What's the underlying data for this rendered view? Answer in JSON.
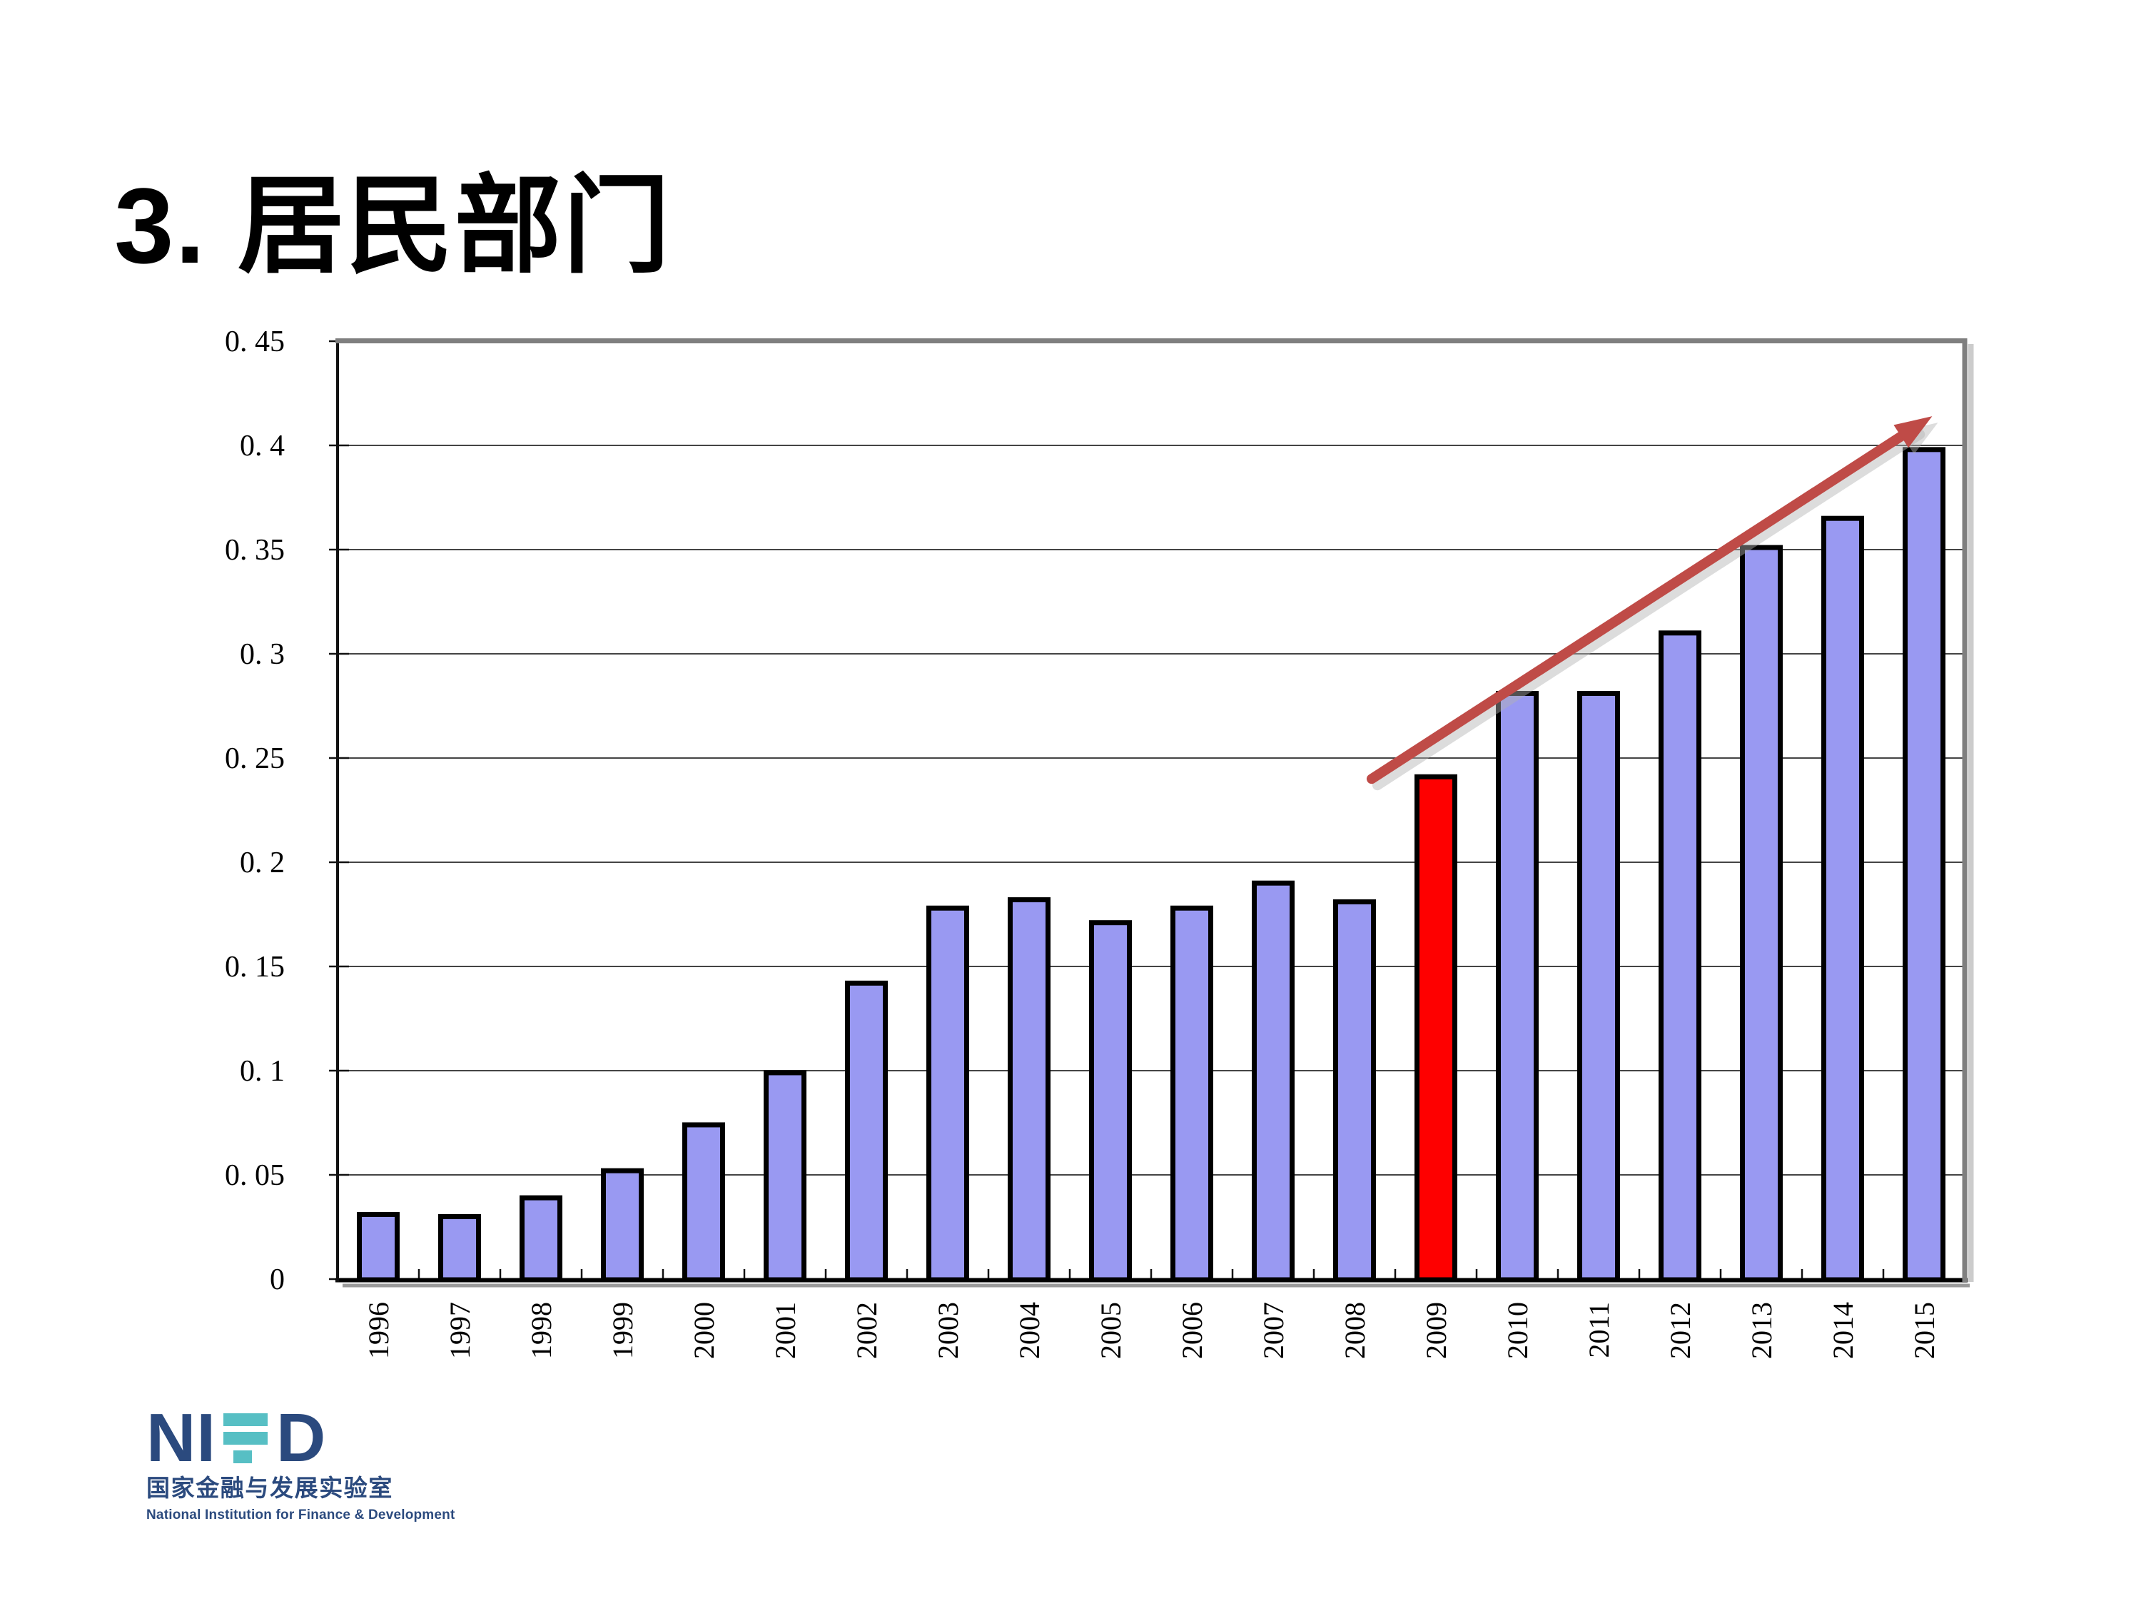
{
  "slide": {
    "title": "3. 居民部门",
    "background_color": "#FFFFFF"
  },
  "chart_data": {
    "type": "bar",
    "title": "",
    "xlabel": "",
    "ylabel": "",
    "categories": [
      "1996",
      "1997",
      "1998",
      "1999",
      "2000",
      "2001",
      "2002",
      "2003",
      "2004",
      "2005",
      "2006",
      "2007",
      "2008",
      "2009",
      "2010",
      "2011",
      "2012",
      "2013",
      "2014",
      "2015"
    ],
    "values": [
      0.031,
      0.03,
      0.039,
      0.052,
      0.074,
      0.099,
      0.142,
      0.178,
      0.182,
      0.171,
      0.178,
      0.19,
      0.181,
      0.241,
      0.281,
      0.281,
      0.31,
      0.351,
      0.365,
      0.398
    ],
    "highlight_category": "2009",
    "ylim": [
      0,
      0.45
    ],
    "ytick_step": 0.05,
    "ytick_labels": [
      "0",
      "0. 05",
      "0. 1",
      "0. 15",
      "0. 2",
      "0. 25",
      "0. 3",
      "0. 35",
      "0. 4",
      "0. 45"
    ],
    "grid": true,
    "legend": "none",
    "x_labels_rotated_degrees": -90,
    "colors": {
      "bar_fill": "#9999F2",
      "bar_highlight_fill": "#FE0000",
      "bar_stroke": "#000000",
      "gridline": "#444444",
      "axis": "#000000",
      "plot_border": "#7F7F7F",
      "arrow": "#BF4B47"
    },
    "trend_arrow": {
      "start": {
        "x_slot": 12.71,
        "y_value": 0.24
      },
      "end": {
        "x_slot": 19.6,
        "y_value": 0.414
      }
    }
  },
  "logo": {
    "wordmark": "NIFD",
    "wordmark_ni": "NI",
    "wordmark_d": "D",
    "cn": "国家金融与发展实验室",
    "en": "National Institution for Finance & Development",
    "navy": "#2B4A7E",
    "teal": "#57BFC4"
  }
}
